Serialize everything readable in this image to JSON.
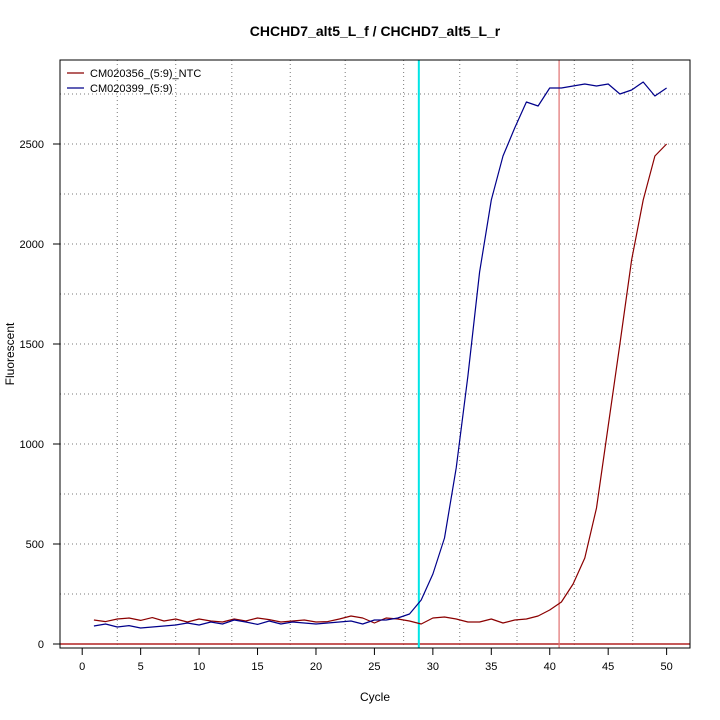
{
  "chart_data": {
    "type": "line",
    "title": "CHCHD7_alt5_L_f / CHCHD7_alt5_L_r",
    "xlabel": "Cycle",
    "ylabel": "Fluorescent",
    "xlim": [
      -1.9,
      52
    ],
    "ylim": [
      -20,
      2920
    ],
    "xticks": [
      0,
      5,
      10,
      15,
      20,
      25,
      30,
      35,
      40,
      45,
      50
    ],
    "yticks": [
      0,
      500,
      1000,
      1500,
      2000,
      2500
    ],
    "grid": true,
    "grid_x": [
      3,
      8,
      12.8,
      17.8,
      22.5,
      27.5,
      32.3,
      37.2,
      42.1,
      47.1
    ],
    "grid_y": [
      -20,
      250,
      500,
      750,
      1000,
      1250,
      1500,
      1750,
      2000,
      2250,
      2500,
      2750
    ],
    "legend_position": "top-left",
    "threshold_y": 0,
    "threshold_color": "#B22222",
    "vlines": [
      {
        "x": 28.8,
        "color": "#00E5E5"
      },
      {
        "x": 40.8,
        "color": "#E07070"
      }
    ],
    "x": [
      1,
      2,
      3,
      4,
      5,
      6,
      7,
      8,
      9,
      10,
      11,
      12,
      13,
      14,
      15,
      16,
      17,
      18,
      19,
      20,
      21,
      22,
      23,
      24,
      25,
      26,
      27,
      28,
      29,
      30,
      31,
      32,
      33,
      34,
      35,
      36,
      37,
      38,
      39,
      40,
      41,
      42,
      43,
      44,
      45,
      46,
      47,
      48,
      49,
      50
    ],
    "series": [
      {
        "name": "CM020356_(5:9)_NTC",
        "color": "#8B0000",
        "values": [
          120,
          112,
          125,
          130,
          118,
          132,
          115,
          125,
          110,
          125,
          115,
          110,
          125,
          115,
          130,
          122,
          110,
          115,
          120,
          110,
          112,
          125,
          140,
          130,
          105,
          130,
          125,
          115,
          100,
          130,
          135,
          125,
          110,
          110,
          125,
          105,
          120,
          125,
          140,
          170,
          210,
          300,
          430,
          680,
          1090,
          1500,
          1920,
          2220,
          2440,
          2500
        ]
      },
      {
        "name": "CM020399_(5:9)",
        "color": "#00008B",
        "values": [
          90,
          100,
          85,
          92,
          80,
          85,
          90,
          95,
          105,
          95,
          110,
          100,
          120,
          110,
          98,
          115,
          100,
          110,
          105,
          100,
          105,
          110,
          115,
          100,
          120,
          120,
          130,
          150,
          220,
          350,
          530,
          880,
          1340,
          1860,
          2220,
          2440,
          2580,
          2710,
          2690,
          2780,
          2780,
          2790,
          2800,
          2790,
          2800,
          2750,
          2770,
          2810,
          2740,
          2780
        ]
      }
    ]
  }
}
